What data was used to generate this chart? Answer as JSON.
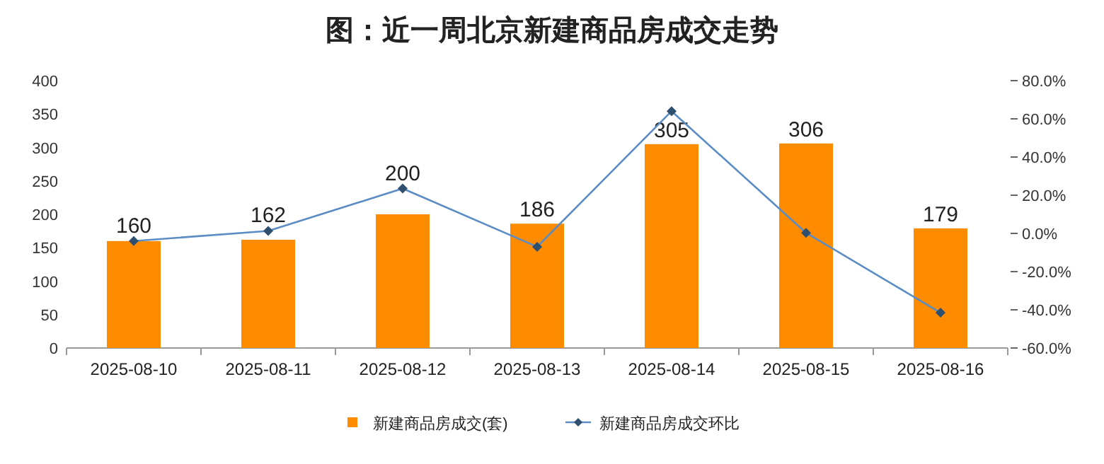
{
  "chart_data": {
    "type": "bar",
    "title": "图：近一周北京新建商品房成交走势",
    "categories": [
      "2025-08-10",
      "2025-08-11",
      "2025-08-12",
      "2025-08-13",
      "2025-08-14",
      "2025-08-15",
      "2025-08-16"
    ],
    "series": [
      {
        "name": "新建商品房成交(套)",
        "color": "#ff8c00",
        "values": [
          160,
          162,
          200,
          186,
          305,
          306,
          179
        ],
        "data_labels": true
      },
      {
        "name": "新建商品房成交环比",
        "type": "line",
        "axis": "y2",
        "color": "#5b8dc4",
        "marker": "diamond",
        "values": [
          -4.0,
          1.3,
          23.5,
          -7.0,
          64.0,
          0.3,
          -41.5
        ]
      }
    ],
    "ylim": [
      0,
      400
    ],
    "yticks": [
      0,
      50,
      100,
      150,
      200,
      250,
      300,
      350,
      400
    ],
    "y2lim": [
      -60,
      80
    ],
    "y2ticks": [
      {
        "value": -60,
        "label": "-60.0%"
      },
      {
        "value": -40,
        "label": "-40.0%"
      },
      {
        "value": -20,
        "label": "-20.0%"
      },
      {
        "value": 0,
        "label": "0.0%"
      },
      {
        "value": 20,
        "label": "20.0%"
      },
      {
        "value": 40,
        "label": "40.0%"
      },
      {
        "value": 60,
        "label": "60.0%"
      },
      {
        "value": 80,
        "label": "80.0%"
      }
    ],
    "legend": "bottom",
    "grid": false
  }
}
